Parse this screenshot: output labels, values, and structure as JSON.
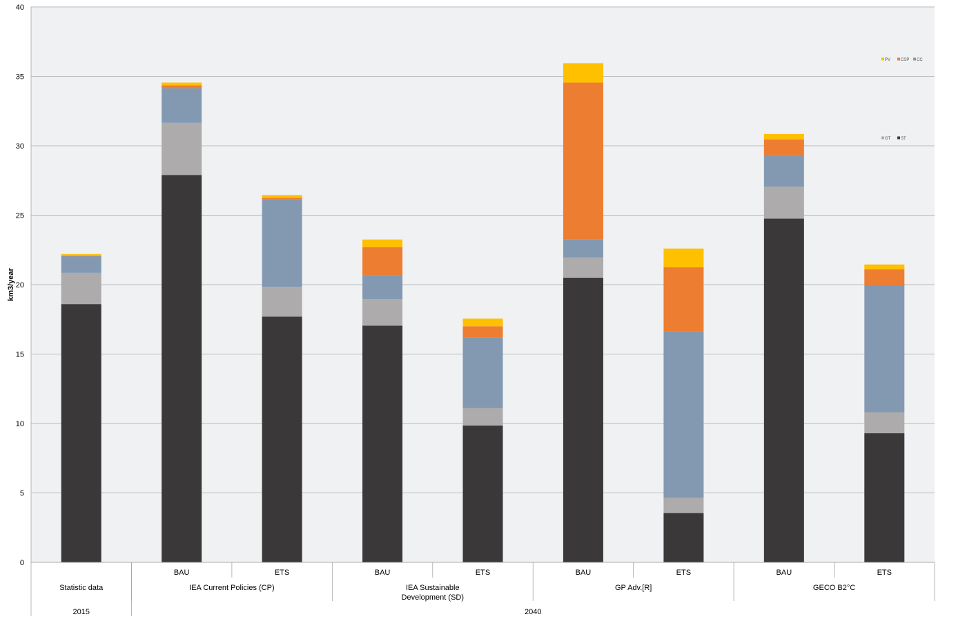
{
  "chart_data": {
    "type": "bar",
    "stacked": true,
    "ylabel": "km3/year",
    "ylim": [
      0,
      40
    ],
    "yticks": [
      0,
      5,
      10,
      15,
      20,
      25,
      30,
      35,
      40
    ],
    "grid": true,
    "categories": [
      "Statistic data",
      "BAU",
      "ETS",
      "BAU",
      "ETS",
      "BAU",
      "ETS",
      "BAU",
      "ETS"
    ],
    "scenario_groups": [
      {
        "label": "Statistic data",
        "span": 1
      },
      {
        "label": "IEA Current Policies (CP)",
        "span": 2
      },
      {
        "label": "IEA Sustainable",
        "label2": "Development (SD)",
        "span": 2
      },
      {
        "label": "GP Adv.[R]",
        "span": 2
      },
      {
        "label": "GECO B2°C",
        "span": 2
      }
    ],
    "year_groups": [
      {
        "label": "2015",
        "span": 1
      },
      {
        "label": "2040",
        "span": 8
      }
    ],
    "series": [
      {
        "name": "ST",
        "color": "#3a3839",
        "values": [
          18.6,
          27.9,
          17.7,
          17.05,
          9.85,
          20.5,
          3.55,
          24.75,
          9.3
        ]
      },
      {
        "name": "GT",
        "color": "#adabab",
        "values": [
          2.25,
          3.75,
          2.15,
          1.9,
          1.25,
          1.45,
          1.1,
          2.3,
          1.5
        ]
      },
      {
        "name": "CC",
        "color": "#8399b2",
        "values": [
          1.2,
          2.5,
          6.3,
          1.7,
          5.1,
          1.3,
          12.0,
          2.25,
          9.1
        ]
      },
      {
        "name": "CSP",
        "color": "#ed7d31",
        "values": [
          0.05,
          0.2,
          0.1,
          2.05,
          0.8,
          11.3,
          4.6,
          1.15,
          1.2
        ]
      },
      {
        "name": "PV",
        "color": "#ffc000",
        "values": [
          0.1,
          0.2,
          0.2,
          0.55,
          0.55,
          1.4,
          1.35,
          0.4,
          0.35
        ]
      }
    ],
    "legend": {
      "position": "right",
      "rows": [
        [
          "PV",
          "CSP",
          "CC"
        ],
        [
          "GT",
          "ST"
        ]
      ]
    }
  }
}
